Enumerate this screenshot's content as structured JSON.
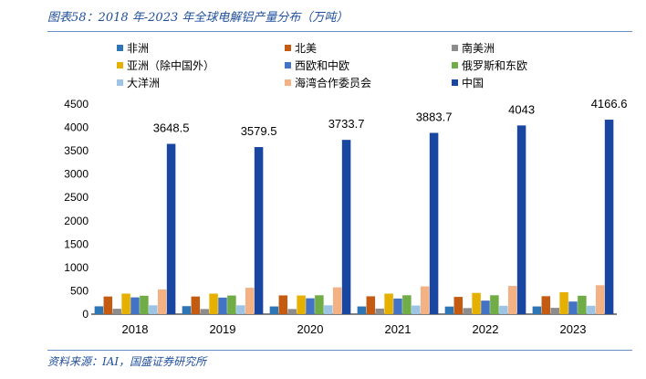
{
  "page": {
    "title": "图表58：2018 年-2023 年全球电解铝产量分布（万吨）",
    "source": "资料来源：IAI，国盛证券研究所"
  },
  "chart_data": {
    "type": "bar",
    "categories": [
      "2018",
      "2019",
      "2020",
      "2021",
      "2022",
      "2023"
    ],
    "ylim": [
      0,
      4500
    ],
    "yticks": [
      0,
      500,
      1000,
      1500,
      2000,
      2500,
      3000,
      3500,
      4000,
      4500
    ],
    "grid": false,
    "legend_position": "top",
    "series": [
      {
        "name": "非洲",
        "color": "#2e75b6",
        "values": [
          168,
          172,
          165,
          165,
          163,
          165
        ]
      },
      {
        "name": "北美",
        "color": "#c55a11",
        "values": [
          378,
          378,
          402,
          383,
          370,
          385
        ]
      },
      {
        "name": "南美洲",
        "color": "#8c8c8c",
        "values": [
          115,
          110,
          110,
          120,
          130,
          135
        ]
      },
      {
        "name": "亚洲（除中国外）",
        "color": "#e6b000",
        "values": [
          440,
          440,
          400,
          440,
          455,
          470
        ]
      },
      {
        "name": "西欧和中欧",
        "color": "#4472c4",
        "values": [
          360,
          355,
          340,
          335,
          290,
          270
        ]
      },
      {
        "name": "俄罗斯和东欧",
        "color": "#70ad47",
        "values": [
          395,
          400,
          405,
          405,
          405,
          395
        ]
      },
      {
        "name": "大洋洲",
        "color": "#9dc3e6",
        "values": [
          190,
          190,
          190,
          185,
          180,
          180
        ]
      },
      {
        "name": "海湾合作委员会",
        "color": "#f4b183",
        "values": [
          530,
          565,
          575,
          595,
          605,
          620
        ]
      },
      {
        "name": "中国",
        "color": "#1946a0",
        "values": [
          3648.5,
          3579.5,
          3733.7,
          3883.7,
          4043,
          4166.6
        ],
        "labels": [
          "3648.5",
          "3579.5",
          "3733.7",
          "3883.7",
          "4043",
          "4166.6"
        ]
      }
    ]
  }
}
